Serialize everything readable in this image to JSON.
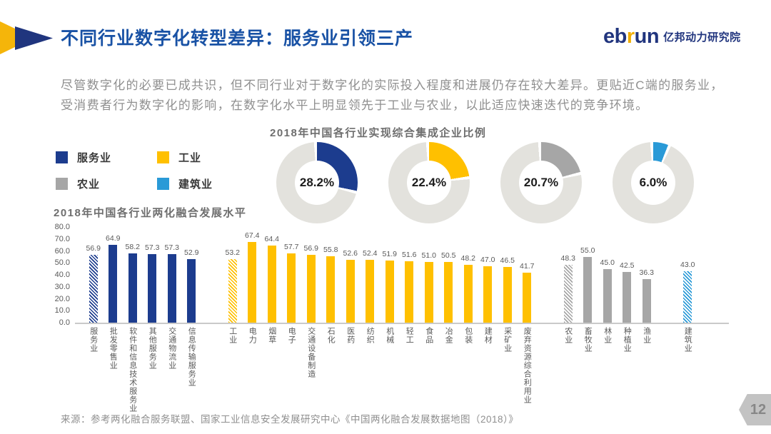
{
  "colors": {
    "service": "#1C3C8E",
    "industry": "#FFC000",
    "agriculture": "#A6A6A6",
    "construction": "#2A9AD7",
    "donut_rest": "#E3E2DD"
  },
  "header": {
    "title": "不同行业数字化转型差异：服务业引领三产",
    "logo_en_parts": [
      "eb",
      "r",
      "un"
    ],
    "logo_cn": "亿邦动力研究院"
  },
  "intro": {
    "lines": [
      "尽管数字化的必要已成共识，但不同行业对于数字化的实际投入程度和进展仍存在较大差异。更贴近C端的服务业，",
      "受消费者行为数字化的影响，在数字化水平上明显领先于工业与农业，以此适应快速迭代的竞争环境。"
    ]
  },
  "legend": {
    "items": [
      {
        "label": "服务业",
        "color": "#1C3C8E"
      },
      {
        "label": "工业",
        "color": "#FFC000"
      },
      {
        "label": "农业",
        "color": "#A6A6A6"
      },
      {
        "label": "建筑业",
        "color": "#2A9AD7"
      }
    ]
  },
  "chart_data": [
    {
      "type": "pie",
      "subtype": "donut-set",
      "title": "2018年中国各行业实现综合集成企业比例",
      "donuts": [
        {
          "label": "服务业",
          "value_pct": 28.2,
          "display": "28.2%",
          "color": "#1C3C8E"
        },
        {
          "label": "工业",
          "value_pct": 22.4,
          "display": "22.4%",
          "color": "#FFC000"
        },
        {
          "label": "农业",
          "value_pct": 20.7,
          "display": "20.7%",
          "color": "#A6A6A6"
        },
        {
          "label": "建筑业",
          "value_pct": 6.0,
          "display": "6.0%",
          "color": "#2A9AD7"
        }
      ]
    },
    {
      "type": "bar",
      "title": "2018年中国各行业两化融合发展水平",
      "ylim": [
        0,
        80
      ],
      "ytick_labels": [
        "80.0",
        "70.0",
        "60.0",
        "50.0",
        "40.0",
        "30.0",
        "20.0",
        "10.0",
        "0.0"
      ],
      "grid": false,
      "groups": [
        {
          "name": "服务业",
          "color": "#1C3C8E",
          "bars": [
            {
              "label": "服务业",
              "value": 56.9,
              "hatched": true
            },
            {
              "label": "批发零售业",
              "value": 64.9
            },
            {
              "label": "软件和信息技术服务业",
              "value": 58.2
            },
            {
              "label": "其他服务业",
              "value": 57.3
            },
            {
              "label": "交通物流业",
              "value": 57.3
            },
            {
              "label": "信息传输服务业",
              "value": 52.9
            }
          ]
        },
        {
          "name": "工业",
          "color": "#FFC000",
          "bars": [
            {
              "label": "工业",
              "value": 53.2,
              "hatched": true
            },
            {
              "label": "电力",
              "value": 67.4
            },
            {
              "label": "烟草",
              "value": 64.4
            },
            {
              "label": "电子",
              "value": 57.7
            },
            {
              "label": "交通设备制造",
              "value": 56.9
            },
            {
              "label": "石化",
              "value": 55.8
            },
            {
              "label": "医药",
              "value": 52.6
            },
            {
              "label": "纺织",
              "value": 52.4
            },
            {
              "label": "机械",
              "value": 51.9
            },
            {
              "label": "轻工",
              "value": 51.6
            },
            {
              "label": "食品",
              "value": 51.0
            },
            {
              "label": "冶金",
              "value": 50.5
            },
            {
              "label": "包装",
              "value": 48.2
            },
            {
              "label": "建材",
              "value": 47.0
            },
            {
              "label": "采矿业",
              "value": 46.5
            },
            {
              "label": "废弃资源综合利用业",
              "value": 41.7
            }
          ]
        },
        {
          "name": "农业",
          "color": "#A6A6A6",
          "bars": [
            {
              "label": "农业",
              "value": 48.3,
              "hatched": true
            },
            {
              "label": "畜牧业",
              "value": 55.0
            },
            {
              "label": "林业",
              "value": 45.0
            },
            {
              "label": "种植业",
              "value": 42.5
            },
            {
              "label": "渔业",
              "value": 36.3
            }
          ]
        },
        {
          "name": "建筑业",
          "color": "#2A9AD7",
          "bars": [
            {
              "label": "建筑业",
              "value": 43.0,
              "hatched": true
            }
          ]
        }
      ]
    }
  ],
  "footer": {
    "source": "来源：参考两化融合服务联盟、国家工业信息安全发展研究中心《中国两化融合发展数据地图（2018）》",
    "page_number": "12"
  }
}
